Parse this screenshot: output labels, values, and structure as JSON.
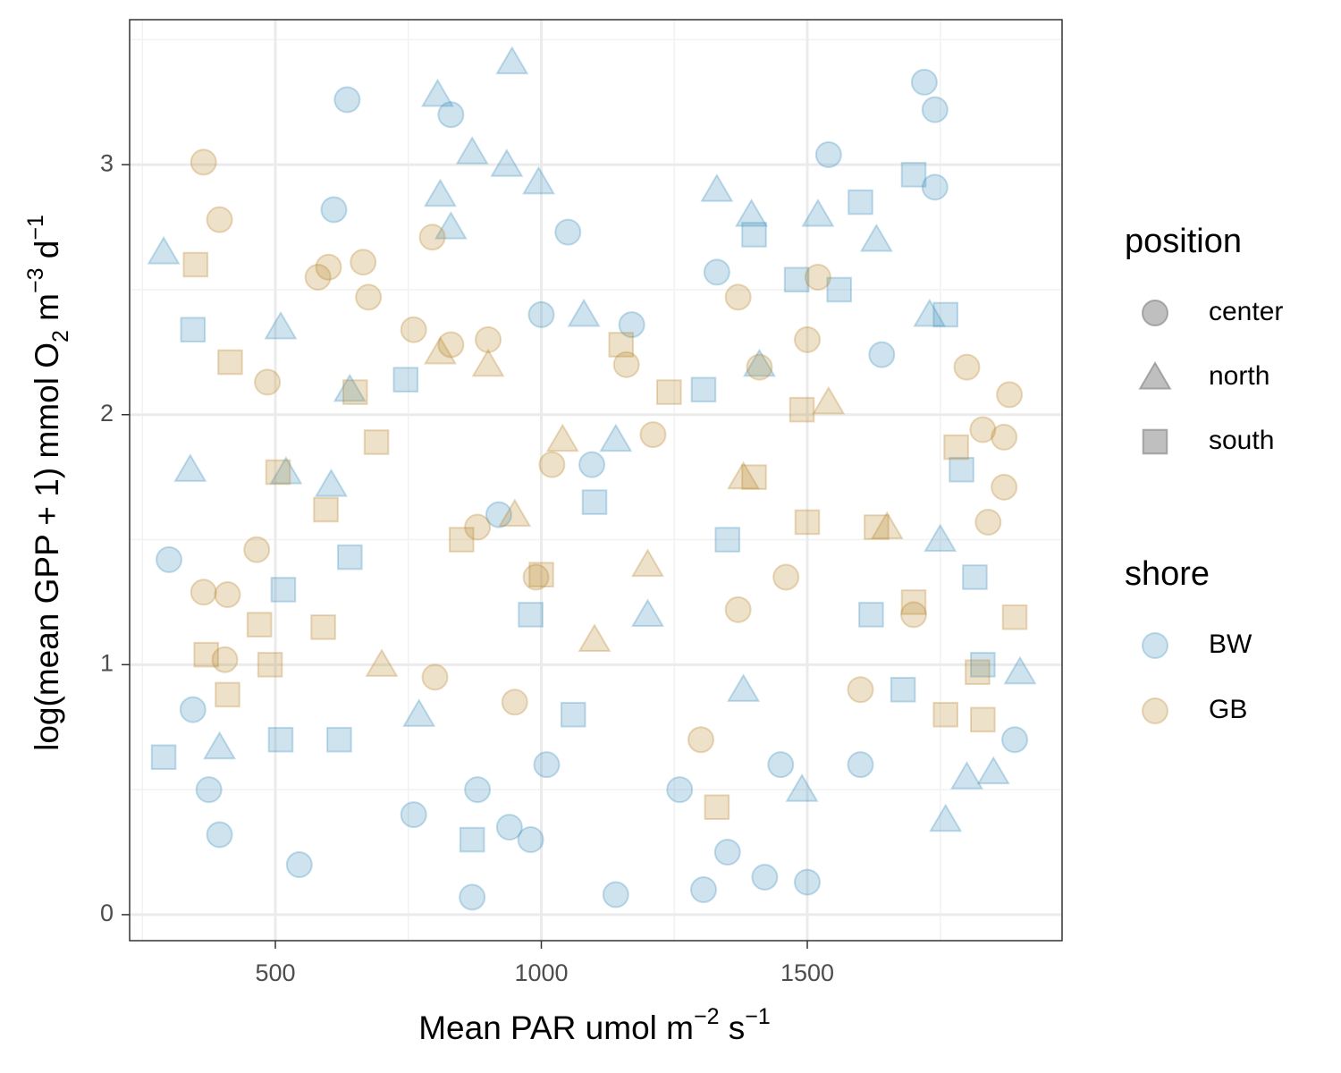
{
  "chart_data": {
    "type": "scatter",
    "x_label": [
      {
        "text": "Mean PAR umol m"
      },
      {
        "sup": "−2"
      },
      {
        "text": " s"
      },
      {
        "sup": "−1"
      }
    ],
    "y_label": [
      {
        "text": "log(mean GPP + 1) mmol O"
      },
      {
        "sub": "2"
      },
      {
        "text": " m"
      },
      {
        "sup": "−3"
      },
      {
        "text": " d"
      },
      {
        "sup": "−1"
      }
    ],
    "xlim": [
      226,
      1979
    ],
    "ylim": [
      -0.104,
      3.58
    ],
    "xticks": [
      500,
      1000,
      1500
    ],
    "yticks": [
      0,
      1,
      2,
      3
    ],
    "xminor": [
      250,
      750,
      1250,
      1750
    ],
    "yminor": [
      0.5,
      1.5,
      2.5,
      3.5
    ],
    "grid": true,
    "opacity": 0.25,
    "legend": {
      "position": {
        "title": "position",
        "items": [
          "center",
          "north",
          "south"
        ],
        "shapes": [
          "circle",
          "triangle",
          "square"
        ]
      },
      "shore": {
        "title": "shore",
        "items": [
          "BW",
          "GB"
        ],
        "colors": [
          "#3a8fbd",
          "#b8862b"
        ]
      }
    },
    "series": [
      {
        "shore": "BW",
        "position": "center",
        "x": [
          300,
          345,
          375,
          395,
          635,
          610,
          545,
          830,
          870,
          940,
          980,
          1000,
          1050,
          1095,
          1140,
          1170,
          1305,
          1330,
          1350,
          1420,
          1500,
          1540,
          1640,
          1720,
          1740,
          1740,
          1890,
          920,
          880,
          760,
          1600,
          1450,
          1010,
          1260
        ],
        "values": [
          1.42,
          0.82,
          0.5,
          0.32,
          3.26,
          2.82,
          0.2,
          3.2,
          0.07,
          0.35,
          0.3,
          2.4,
          2.73,
          1.8,
          0.08,
          2.36,
          0.1,
          2.57,
          0.25,
          0.15,
          0.13,
          3.04,
          2.24,
          3.33,
          3.22,
          2.91,
          0.7,
          1.6,
          0.5,
          0.4,
          0.6,
          0.6,
          0.6,
          0.5
        ]
      },
      {
        "shore": "BW",
        "position": "north",
        "x": [
          290,
          340,
          395,
          510,
          520,
          640,
          605,
          805,
          810,
          830,
          870,
          945,
          935,
          995,
          1080,
          1140,
          1330,
          1395,
          1410,
          1520,
          1630,
          1730,
          1750,
          1800,
          1850,
          1900,
          770,
          1490,
          1200,
          1380,
          1760
        ],
        "values": [
          2.65,
          1.78,
          0.67,
          2.35,
          1.77,
          2.1,
          1.72,
          3.28,
          2.88,
          2.75,
          3.05,
          3.41,
          3.0,
          2.93,
          2.4,
          1.9,
          2.9,
          2.8,
          2.2,
          2.8,
          2.7,
          2.4,
          1.5,
          0.55,
          0.57,
          0.97,
          0.8,
          0.5,
          1.2,
          0.9,
          0.38
        ]
      },
      {
        "shore": "BW",
        "position": "south",
        "x": [
          290,
          345,
          510,
          515,
          620,
          640,
          745,
          870,
          1060,
          1305,
          1400,
          1480,
          1560,
          1600,
          1700,
          1760,
          1790,
          1830,
          1815,
          980,
          1350,
          1620,
          1100,
          1680
        ],
        "values": [
          0.63,
          2.34,
          0.7,
          1.3,
          0.7,
          1.43,
          2.14,
          0.3,
          0.8,
          2.1,
          2.72,
          2.54,
          2.5,
          2.85,
          2.96,
          2.4,
          1.78,
          1.0,
          1.35,
          1.2,
          1.5,
          1.2,
          1.65,
          0.9
        ]
      },
      {
        "shore": "GB",
        "position": "center",
        "x": [
          365,
          395,
          365,
          410,
          405,
          465,
          485,
          580,
          600,
          665,
          675,
          795,
          760,
          830,
          900,
          880,
          990,
          1020,
          1160,
          1210,
          1370,
          1410,
          1500,
          1520,
          1800,
          1830,
          1880,
          1870,
          1870,
          1840,
          1460,
          1370,
          800,
          950,
          1300,
          1600,
          1700
        ],
        "values": [
          3.01,
          2.78,
          1.29,
          1.28,
          1.02,
          1.46,
          2.13,
          2.55,
          2.59,
          2.61,
          2.47,
          2.71,
          2.34,
          2.28,
          2.3,
          1.55,
          1.35,
          1.8,
          2.2,
          1.92,
          2.47,
          2.19,
          2.3,
          2.55,
          2.19,
          1.94,
          2.08,
          1.91,
          1.71,
          1.57,
          1.35,
          1.22,
          0.95,
          0.85,
          0.7,
          0.9,
          1.2
        ]
      },
      {
        "shore": "GB",
        "position": "north",
        "x": [
          810,
          900,
          1040,
          1200,
          1380,
          1540,
          1650,
          700,
          950,
          1100
        ],
        "values": [
          2.25,
          2.2,
          1.9,
          1.4,
          1.75,
          2.05,
          1.55,
          1.0,
          1.6,
          1.1
        ]
      },
      {
        "shore": "GB",
        "position": "south",
        "x": [
          350,
          415,
          370,
          410,
          470,
          490,
          505,
          595,
          590,
          650,
          690,
          1150,
          1240,
          1330,
          1400,
          1490,
          1500,
          1630,
          1780,
          1820,
          1830,
          1890,
          1760,
          1700,
          850,
          1000
        ],
        "values": [
          2.6,
          2.21,
          1.04,
          0.88,
          1.16,
          1.0,
          1.77,
          1.62,
          1.15,
          2.09,
          1.89,
          2.28,
          2.09,
          0.43,
          1.75,
          2.02,
          1.57,
          1.55,
          1.87,
          0.97,
          0.78,
          1.19,
          0.8,
          1.25,
          1.5,
          1.36
        ]
      }
    ]
  }
}
